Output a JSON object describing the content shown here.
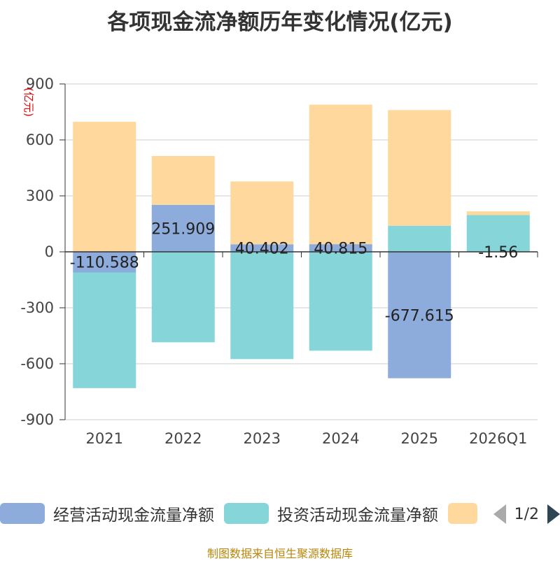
{
  "title": "各项现金流净额历年变化情况(亿元)",
  "source": "制图数据来自恒生聚源数据库",
  "pager": {
    "text": "1/2"
  },
  "legend": [
    {
      "label": "经营活动现金流量净额",
      "color": "#8eacdb"
    },
    {
      "label": "投资活动现金流量净额",
      "color": "#86d5d8"
    },
    {
      "label": "",
      "color": "#fed89c"
    }
  ],
  "chart_data": {
    "type": "bar",
    "stacked": true,
    "categories": [
      "2021",
      "2022",
      "2023",
      "2024",
      "2025",
      "2026Q1"
    ],
    "ylabel": "(亿元)",
    "ylim": [
      -900,
      900
    ],
    "yticks": [
      900,
      600,
      300,
      0,
      -300,
      -600,
      -900
    ],
    "grid": true,
    "legend_position": "bottom",
    "series": [
      {
        "name": "经营活动现金流量净额",
        "color": "#8eacdb",
        "values": [
          -110.588,
          251.909,
          40.402,
          40.815,
          -677.615,
          -1.56
        ],
        "labels": [
          "-110.588",
          "251.909",
          "40.402",
          "40.815",
          "-677.615",
          "-1.56"
        ]
      },
      {
        "name": "投资活动现金流量净额",
        "color": "#86d5d8",
        "values": [
          -620,
          -485,
          -575,
          -530,
          140,
          197
        ]
      },
      {
        "name": "",
        "color": "#fed89c",
        "values": [
          697,
          262,
          337,
          748,
          620,
          20
        ]
      }
    ]
  }
}
